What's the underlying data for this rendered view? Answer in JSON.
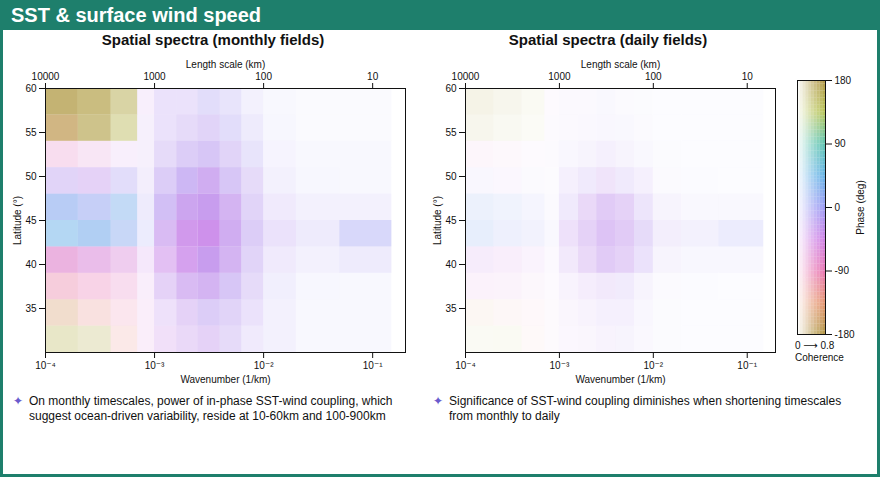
{
  "header": {
    "title": "SST & surface wind speed"
  },
  "colorbar": {
    "label": "Phase (deg)",
    "range": [
      -180,
      180
    ],
    "ticks": [
      180,
      90,
      0,
      -90,
      -180
    ],
    "coherence_label": "Coherence",
    "coherence_range_label": "0 ⟶ 0.8",
    "coherence_range": [
      0,
      0.8
    ]
  },
  "chart_data": [
    {
      "type": "heatmap",
      "title": "Spatial spectra (monthly fields)",
      "xlabel": "Wavenumber (1/km)",
      "ylabel": "Latitude (°)",
      "x2label": "Length scale (km)",
      "log": "x",
      "grid": false,
      "xlim": [
        0.0001,
        0.2
      ],
      "ylim": [
        30,
        60
      ],
      "xticks": [
        {
          "value": 0.0001,
          "label": "10⁻⁴"
        },
        {
          "value": 0.001,
          "label": "10⁻³"
        },
        {
          "value": 0.01,
          "label": "10⁻²"
        },
        {
          "value": 0.1,
          "label": "10⁻¹"
        }
      ],
      "x2ticks": [
        10000,
        1000,
        100,
        10
      ],
      "yticks": [
        35,
        40,
        45,
        50,
        55,
        60
      ],
      "x_edges": [
        0.0001,
        0.0002,
        0.0004,
        0.0007,
        0.001,
        0.0016,
        0.0025,
        0.004,
        0.0063,
        0.01,
        0.02,
        0.05,
        0.15
      ],
      "y_edges": [
        30,
        33,
        36,
        39,
        42,
        45,
        48,
        51,
        54,
        57,
        60
      ],
      "phase": [
        [
          150,
          160,
          -120,
          -60,
          -40,
          -30,
          -30,
          -20,
          -20,
          -10,
          0,
          0
        ],
        [
          -150,
          -120,
          -100,
          -60,
          -30,
          -30,
          -20,
          -20,
          -20,
          -10,
          0,
          0
        ],
        [
          -100,
          -90,
          -80,
          -50,
          -30,
          -30,
          -30,
          -20,
          -20,
          -10,
          0,
          0
        ],
        [
          -70,
          -60,
          -60,
          -40,
          -40,
          -40,
          -30,
          -30,
          -20,
          -20,
          -10,
          -10
        ],
        [
          40,
          30,
          20,
          0,
          -30,
          -40,
          -40,
          -30,
          -20,
          -20,
          -10,
          0
        ],
        [
          20,
          10,
          30,
          -10,
          -20,
          -30,
          -30,
          -30,
          -20,
          -20,
          -10,
          -10
        ],
        [
          -20,
          -30,
          -10,
          -20,
          -20,
          -20,
          -30,
          -20,
          -20,
          -10,
          0,
          0
        ],
        [
          -80,
          -70,
          -40,
          -30,
          -20,
          -20,
          -20,
          -20,
          -10,
          -10,
          0,
          0
        ],
        [
          -170,
          170,
          150,
          -30,
          -20,
          -20,
          -20,
          -10,
          -10,
          0,
          0,
          0
        ],
        [
          175,
          170,
          160,
          -40,
          -20,
          -20,
          -10,
          -10,
          -10,
          0,
          0,
          0
        ]
      ],
      "coherence": [
        [
          0.25,
          0.2,
          0.15,
          0.1,
          0.2,
          0.25,
          0.3,
          0.25,
          0.15,
          0.1,
          0.05,
          0.05
        ],
        [
          0.25,
          0.2,
          0.15,
          0.1,
          0.2,
          0.3,
          0.35,
          0.3,
          0.2,
          0.1,
          0.05,
          0.05
        ],
        [
          0.3,
          0.25,
          0.2,
          0.1,
          0.3,
          0.45,
          0.5,
          0.4,
          0.25,
          0.12,
          0.06,
          0.05
        ],
        [
          0.45,
          0.4,
          0.3,
          0.15,
          0.4,
          0.6,
          0.65,
          0.5,
          0.3,
          0.15,
          0.1,
          0.15
        ],
        [
          0.4,
          0.45,
          0.35,
          0.15,
          0.45,
          0.65,
          0.7,
          0.55,
          0.35,
          0.2,
          0.15,
          0.3
        ],
        [
          0.45,
          0.4,
          0.35,
          0.15,
          0.45,
          0.6,
          0.65,
          0.5,
          0.3,
          0.15,
          0.1,
          0.1
        ],
        [
          0.3,
          0.3,
          0.25,
          0.12,
          0.35,
          0.5,
          0.55,
          0.4,
          0.25,
          0.1,
          0.06,
          0.05
        ],
        [
          0.2,
          0.15,
          0.1,
          0.1,
          0.25,
          0.35,
          0.4,
          0.3,
          0.2,
          0.08,
          0.05,
          0.05
        ],
        [
          0.55,
          0.5,
          0.35,
          0.1,
          0.2,
          0.25,
          0.3,
          0.25,
          0.15,
          0.06,
          0.04,
          0.04
        ],
        [
          0.6,
          0.55,
          0.4,
          0.1,
          0.2,
          0.2,
          0.25,
          0.2,
          0.1,
          0.05,
          0.04,
          0.04
        ]
      ],
      "annotations": [
        "On monthly timescales, power of in-phase SST-wind coupling, which suggest ocean-driven variability, reside at 10-60km and 100-900km"
      ]
    },
    {
      "type": "heatmap",
      "title": "Spatial spectra (daily fields)",
      "xlabel": "Wavenumber (1/km)",
      "ylabel": "Latitude (°)",
      "x2label": "Length scale (km)",
      "log": "x",
      "grid": false,
      "xlim": [
        0.0001,
        0.2
      ],
      "ylim": [
        30,
        60
      ],
      "xticks": [
        {
          "value": 0.0001,
          "label": "10⁻⁴"
        },
        {
          "value": 0.001,
          "label": "10⁻³"
        },
        {
          "value": 0.01,
          "label": "10⁻²"
        },
        {
          "value": 0.1,
          "label": "10⁻¹"
        }
      ],
      "x2ticks": [
        10000,
        1000,
        100,
        10
      ],
      "yticks": [
        35,
        40,
        45,
        50,
        55,
        60
      ],
      "x_edges": [
        0.0001,
        0.0002,
        0.0004,
        0.0007,
        0.001,
        0.0016,
        0.0025,
        0.004,
        0.0063,
        0.01,
        0.02,
        0.05,
        0.15
      ],
      "y_edges": [
        30,
        33,
        36,
        39,
        42,
        45,
        48,
        51,
        54,
        57,
        60
      ],
      "phase": [
        [
          150,
          160,
          -120,
          -60,
          -30,
          -30,
          -30,
          -20,
          -20,
          -10,
          0,
          0
        ],
        [
          -150,
          -120,
          -100,
          -60,
          -30,
          -30,
          -20,
          -20,
          -20,
          -10,
          0,
          0
        ],
        [
          -60,
          -60,
          -60,
          -40,
          -30,
          -30,
          -30,
          -20,
          -20,
          -10,
          0,
          0
        ],
        [
          -40,
          -50,
          -40,
          -40,
          -30,
          -30,
          -30,
          -30,
          -20,
          -20,
          -10,
          -10
        ],
        [
          20,
          10,
          0,
          -10,
          -30,
          -30,
          -30,
          -30,
          -20,
          -20,
          -10,
          0
        ],
        [
          20,
          10,
          0,
          -10,
          -20,
          -30,
          -30,
          -30,
          -20,
          -20,
          -10,
          -10
        ],
        [
          -20,
          -30,
          -10,
          -20,
          -20,
          -20,
          -30,
          -20,
          -20,
          -10,
          0,
          0
        ],
        [
          -80,
          -70,
          -40,
          -30,
          -20,
          -20,
          -20,
          -20,
          -10,
          -10,
          0,
          0
        ],
        [
          170,
          160,
          150,
          -30,
          -20,
          -20,
          -20,
          -10,
          -10,
          0,
          0,
          0
        ],
        [
          170,
          165,
          160,
          -40,
          -20,
          -20,
          -10,
          -10,
          -10,
          0,
          0,
          0
        ]
      ],
      "coherence": [
        [
          0.05,
          0.05,
          0.04,
          0.03,
          0.05,
          0.06,
          0.08,
          0.08,
          0.05,
          0.03,
          0.02,
          0.02
        ],
        [
          0.06,
          0.05,
          0.04,
          0.03,
          0.06,
          0.08,
          0.1,
          0.1,
          0.06,
          0.03,
          0.02,
          0.02
        ],
        [
          0.08,
          0.07,
          0.05,
          0.03,
          0.08,
          0.12,
          0.15,
          0.14,
          0.08,
          0.04,
          0.03,
          0.02
        ],
        [
          0.12,
          0.1,
          0.08,
          0.04,
          0.15,
          0.25,
          0.35,
          0.3,
          0.2,
          0.08,
          0.06,
          0.06
        ],
        [
          0.15,
          0.12,
          0.1,
          0.05,
          0.2,
          0.3,
          0.4,
          0.35,
          0.25,
          0.12,
          0.1,
          0.15
        ],
        [
          0.12,
          0.1,
          0.08,
          0.04,
          0.15,
          0.25,
          0.35,
          0.3,
          0.18,
          0.08,
          0.05,
          0.05
        ],
        [
          0.06,
          0.05,
          0.04,
          0.03,
          0.1,
          0.15,
          0.18,
          0.15,
          0.1,
          0.04,
          0.03,
          0.02
        ],
        [
          0.05,
          0.04,
          0.03,
          0.03,
          0.06,
          0.08,
          0.1,
          0.08,
          0.05,
          0.03,
          0.02,
          0.02
        ],
        [
          0.08,
          0.06,
          0.04,
          0.03,
          0.04,
          0.05,
          0.06,
          0.05,
          0.04,
          0.02,
          0.02,
          0.02
        ],
        [
          0.1,
          0.08,
          0.05,
          0.03,
          0.04,
          0.04,
          0.05,
          0.04,
          0.03,
          0.02,
          0.02,
          0.02
        ]
      ],
      "annotations": [
        "Significance of SST-wind coupling diminishes when shortening timescales from monthly to daily"
      ]
    }
  ]
}
